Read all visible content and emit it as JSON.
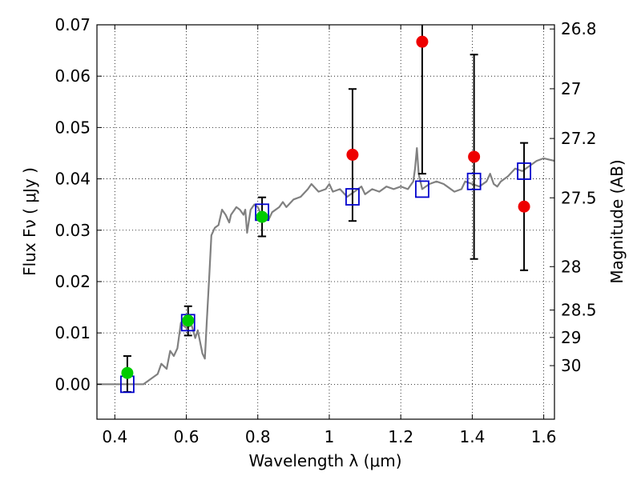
{
  "chart_data": {
    "type": "scatter",
    "xlabel": "Wavelength  λ (μm)",
    "ylabel_left": "Flux  Fν  ( μJy )",
    "ylabel_right": "Magnitude (AB)",
    "xlim": [
      0.35,
      1.63
    ],
    "ylim": [
      -0.0068,
      0.07
    ],
    "x_ticks": [
      0.4,
      0.6,
      0.8,
      1.0,
      1.2,
      1.4,
      1.6
    ],
    "x_tick_labels": [
      "0.4",
      "0.6",
      "0.8",
      "1",
      "1.2",
      "1.4",
      "1.6"
    ],
    "y_ticks": [
      0.0,
      0.01,
      0.02,
      0.03,
      0.04,
      0.05,
      0.06,
      0.07
    ],
    "y_tick_labels": [
      "0.00",
      "0.01",
      "0.02",
      "0.03",
      "0.04",
      "0.05",
      "0.06",
      "0.07"
    ],
    "right_ticks": [
      {
        "label": "26.8",
        "mag": 26.8
      },
      {
        "label": "27",
        "mag": 27.0
      },
      {
        "label": "27.2",
        "mag": 27.2
      },
      {
        "label": "27.5",
        "mag": 27.5
      },
      {
        "label": "28",
        "mag": 28.0
      },
      {
        "label": "28.5",
        "mag": 28.5
      },
      {
        "label": "29",
        "mag": 29.0
      },
      {
        "label": "30",
        "mag": 30.0
      }
    ],
    "grid": true,
    "colors": {
      "template": "#808080",
      "model_box": "#0000cc",
      "detection": "#00cc00",
      "nondetection": "#ee0000",
      "errorbar": "#000000"
    },
    "template_spectrum": [
      [
        0.35,
        0.0
      ],
      [
        0.4,
        0.0
      ],
      [
        0.45,
        0.0
      ],
      [
        0.48,
        0.0
      ],
      [
        0.5,
        0.001
      ],
      [
        0.52,
        0.002
      ],
      [
        0.53,
        0.004
      ],
      [
        0.545,
        0.003
      ],
      [
        0.555,
        0.0065
      ],
      [
        0.565,
        0.0055
      ],
      [
        0.575,
        0.007
      ],
      [
        0.585,
        0.012
      ],
      [
        0.59,
        0.0115
      ],
      [
        0.6,
        0.011
      ],
      [
        0.615,
        0.0115
      ],
      [
        0.625,
        0.009
      ],
      [
        0.632,
        0.0105
      ],
      [
        0.645,
        0.006
      ],
      [
        0.652,
        0.005
      ],
      [
        0.657,
        0.012
      ],
      [
        0.665,
        0.022
      ],
      [
        0.67,
        0.029
      ],
      [
        0.68,
        0.0305
      ],
      [
        0.69,
        0.031
      ],
      [
        0.7,
        0.034
      ],
      [
        0.71,
        0.033
      ],
      [
        0.72,
        0.0315
      ],
      [
        0.725,
        0.033
      ],
      [
        0.74,
        0.0345
      ],
      [
        0.75,
        0.034
      ],
      [
        0.76,
        0.033
      ],
      [
        0.765,
        0.034
      ],
      [
        0.77,
        0.0295
      ],
      [
        0.78,
        0.034
      ],
      [
        0.79,
        0.035
      ],
      [
        0.8,
        0.0345
      ],
      [
        0.81,
        0.033
      ],
      [
        0.83,
        0.032
      ],
      [
        0.84,
        0.0335
      ],
      [
        0.86,
        0.0345
      ],
      [
        0.87,
        0.0355
      ],
      [
        0.88,
        0.0345
      ],
      [
        0.9,
        0.036
      ],
      [
        0.92,
        0.0365
      ],
      [
        0.94,
        0.038
      ],
      [
        0.95,
        0.039
      ],
      [
        0.97,
        0.0375
      ],
      [
        0.99,
        0.038
      ],
      [
        1.0,
        0.039
      ],
      [
        1.01,
        0.0375
      ],
      [
        1.03,
        0.038
      ],
      [
        1.05,
        0.0365
      ],
      [
        1.07,
        0.0375
      ],
      [
        1.09,
        0.0385
      ],
      [
        1.1,
        0.037
      ],
      [
        1.12,
        0.038
      ],
      [
        1.14,
        0.0375
      ],
      [
        1.16,
        0.0385
      ],
      [
        1.18,
        0.038
      ],
      [
        1.2,
        0.0385
      ],
      [
        1.22,
        0.038
      ],
      [
        1.235,
        0.0395
      ],
      [
        1.24,
        0.042
      ],
      [
        1.245,
        0.046
      ],
      [
        1.25,
        0.041
      ],
      [
        1.26,
        0.038
      ],
      [
        1.28,
        0.039
      ],
      [
        1.3,
        0.0395
      ],
      [
        1.32,
        0.039
      ],
      [
        1.33,
        0.0385
      ],
      [
        1.35,
        0.0375
      ],
      [
        1.37,
        0.038
      ],
      [
        1.38,
        0.0395
      ],
      [
        1.4,
        0.039
      ],
      [
        1.42,
        0.0385
      ],
      [
        1.44,
        0.0395
      ],
      [
        1.45,
        0.041
      ],
      [
        1.46,
        0.039
      ],
      [
        1.47,
        0.0385
      ],
      [
        1.48,
        0.0395
      ],
      [
        1.5,
        0.0405
      ],
      [
        1.52,
        0.042
      ],
      [
        1.54,
        0.0415
      ],
      [
        1.56,
        0.0425
      ],
      [
        1.58,
        0.0435
      ],
      [
        1.6,
        0.044
      ],
      [
        1.63,
        0.0435
      ]
    ],
    "model_points": [
      {
        "x": 0.435,
        "y": 0.0
      },
      {
        "x": 0.605,
        "y": 0.012
      },
      {
        "x": 0.812,
        "y": 0.0335
      },
      {
        "x": 1.065,
        "y": 0.0365
      },
      {
        "x": 1.26,
        "y": 0.038
      },
      {
        "x": 1.405,
        "y": 0.0395
      },
      {
        "x": 1.545,
        "y": 0.0415
      }
    ],
    "observations": [
      {
        "x": 0.435,
        "y": 0.0022,
        "ylo": -0.0015,
        "yhi": 0.0055,
        "detected": true
      },
      {
        "x": 0.605,
        "y": 0.0124,
        "ylo": 0.0095,
        "yhi": 0.0152,
        "detected": true
      },
      {
        "x": 0.812,
        "y": 0.0326,
        "ylo": 0.0288,
        "yhi": 0.0364,
        "detected": true
      },
      {
        "x": 1.065,
        "y": 0.0447,
        "ylo": 0.0318,
        "yhi": 0.0575,
        "detected": false
      },
      {
        "x": 1.26,
        "y": 0.0667,
        "ylo": 0.041,
        "yhi": 0.07,
        "detected": false
      },
      {
        "x": 1.405,
        "y": 0.0443,
        "ylo": 0.0244,
        "yhi": 0.0642,
        "detected": false
      },
      {
        "x": 1.545,
        "y": 0.0346,
        "ylo": 0.0222,
        "yhi": 0.047,
        "detected": false
      }
    ]
  }
}
